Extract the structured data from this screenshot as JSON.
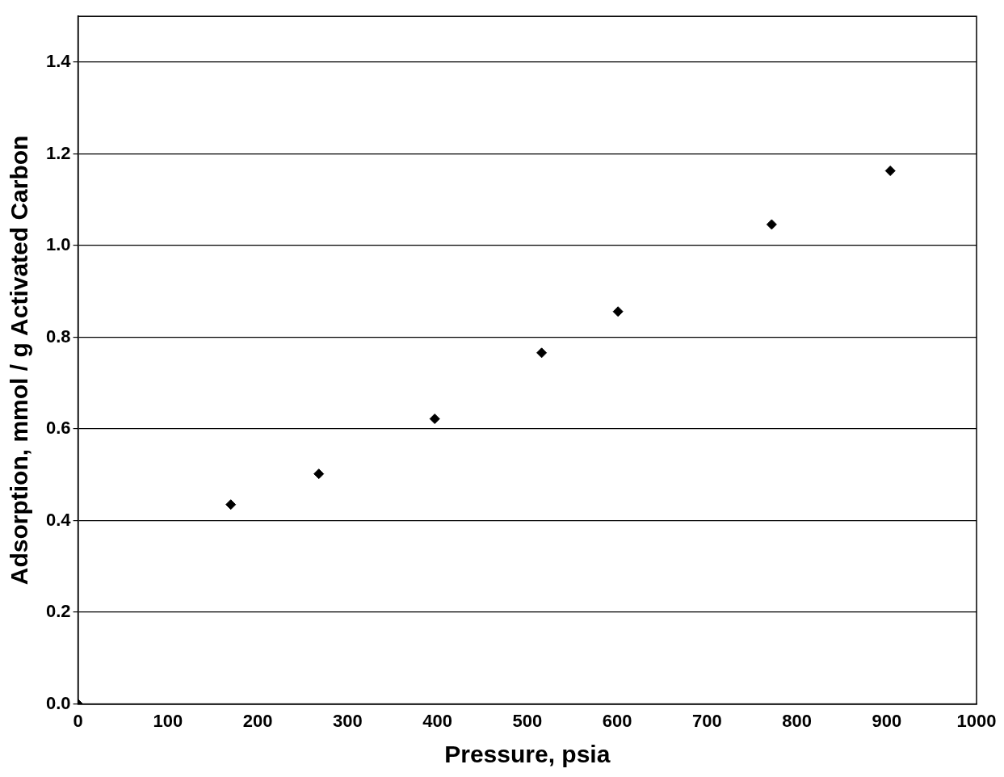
{
  "chart_data": {
    "type": "scatter",
    "x_label": "Pressure, psia",
    "y_label": "Adsorption, mmol / g Activated Carbon",
    "x": [
      0,
      170,
      268,
      397,
      516,
      601,
      772,
      904
    ],
    "values": [
      0,
      0.435,
      0.502,
      0.622,
      0.766,
      0.856,
      1.046,
      1.163
    ],
    "color": "#000000",
    "marker": "diamond",
    "xlim": [
      0,
      1000
    ],
    "xticks": [
      0,
      100,
      200,
      300,
      400,
      500,
      600,
      700,
      800,
      900,
      1000
    ],
    "ylim": [
      0,
      1.5
    ],
    "yticks": [
      {
        "value": 0,
        "label": "0.0"
      },
      0.2,
      0.4,
      0.6,
      0.8,
      {
        "value": 1,
        "label": "1.0"
      },
      1.2,
      1.4
    ],
    "grid": true
  }
}
